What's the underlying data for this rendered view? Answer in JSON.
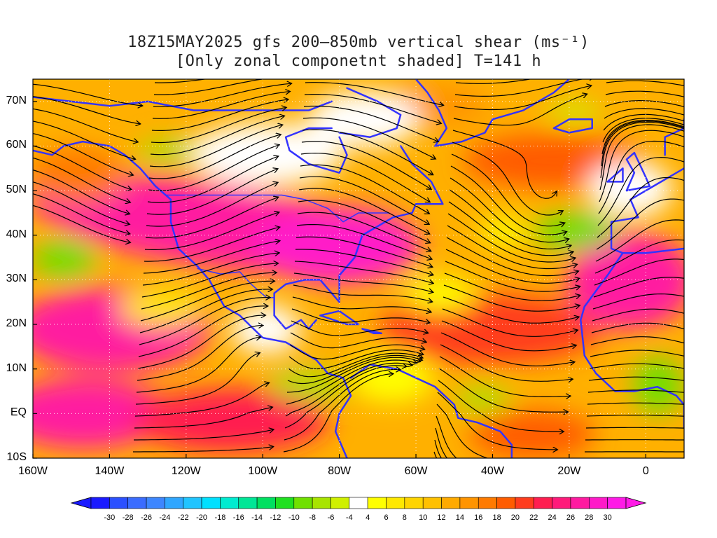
{
  "title": {
    "line1": "18Z15MAY2025 gfs 200–850mb vertical shear (ms⁻¹)",
    "line2": "[Only zonal componetnt shaded] T=141 h"
  },
  "axes": {
    "lat_ticks": [
      "70N",
      "60N",
      "50N",
      "40N",
      "30N",
      "20N",
      "10N",
      "EQ",
      "10S"
    ],
    "lat_values": [
      70,
      60,
      50,
      40,
      30,
      20,
      10,
      0,
      -10
    ],
    "lon_ticks": [
      "160W",
      "140W",
      "120W",
      "100W",
      "80W",
      "60W",
      "40W",
      "20W",
      "0"
    ],
    "lon_values": [
      -160,
      -140,
      -120,
      -100,
      -80,
      -60,
      -40,
      -20,
      0
    ],
    "lon_range": [
      -160,
      10
    ],
    "lat_range": [
      -10,
      75
    ],
    "grid": true
  },
  "colorbar": {
    "labels": [
      "-30",
      "-28",
      "-26",
      "-24",
      "-22",
      "-20",
      "-18",
      "-16",
      "-14",
      "-12",
      "-10",
      "-8",
      "-6",
      "-4",
      "4",
      "6",
      "8",
      "10",
      "12",
      "14",
      "16",
      "18",
      "20",
      "22",
      "24",
      "26",
      "28",
      "30"
    ],
    "colors": [
      "#1a1aff",
      "#2b50ff",
      "#3a6cff",
      "#3d86ff",
      "#2fa6ff",
      "#20c4ff",
      "#00e0ff",
      "#00ebd0",
      "#00e696",
      "#00e060",
      "#20e020",
      "#70e000",
      "#a8e400",
      "#cff000",
      "#ffffff",
      "#ffff00",
      "#ffe800",
      "#ffd400",
      "#ffc000",
      "#ffaa00",
      "#ff9400",
      "#ff7a00",
      "#ff5c00",
      "#ff3c1e",
      "#ff1e50",
      "#ff1a7a",
      "#ff1aa0",
      "#ff1ac8",
      "#ff1ae6"
    ],
    "arrow_left_color": "#1a1aff",
    "arrow_right_color": "#ff1ae6"
  },
  "colors": {
    "coastline": "#3333ff",
    "contour": "#9a2aa0",
    "streamline": "#000000"
  }
}
